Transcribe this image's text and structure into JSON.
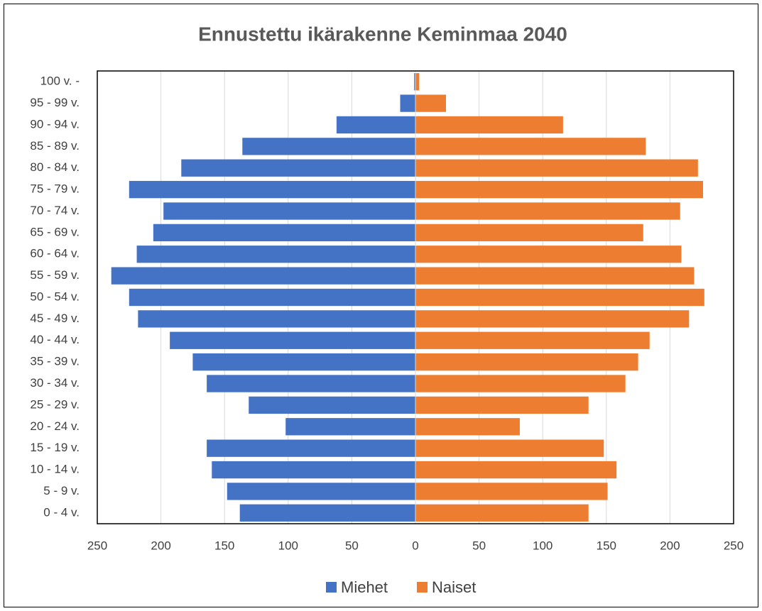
{
  "chart_data": {
    "type": "bar",
    "orientation": "horizontal",
    "title": "Ennustettu ikärakenne Keminmaa 2040",
    "categories": [
      "100 v. -",
      "95 - 99 v.",
      "90 - 94 v.",
      "85 - 89 v.",
      "80 - 84 v.",
      "75 - 79 v.",
      "70 - 74 v.",
      "65 - 69 v.",
      "60 - 64 v.",
      "55 - 59 v.",
      "50 - 54 v.",
      "45 - 49 v.",
      "40 - 44 v.",
      "35 - 39 v.",
      "30 - 34 v.",
      "25 - 29 v.",
      "20 - 24 v.",
      "15 - 19 v.",
      "10 - 14 v.",
      "5 - 9 v.",
      "0 - 4 v."
    ],
    "series": [
      {
        "name": "Miehet",
        "color": "#4472c4",
        "values": [
          -1,
          -12,
          -62,
          -136,
          -184,
          -225,
          -198,
          -206,
          -219,
          -239,
          -225,
          -218,
          -193,
          -175,
          -164,
          -131,
          -102,
          -164,
          -160,
          -148,
          -138
        ]
      },
      {
        "name": "Naiset",
        "color": "#ed7d31",
        "values": [
          3,
          24,
          116,
          181,
          222,
          226,
          208,
          179,
          209,
          219,
          227,
          215,
          184,
          175,
          165,
          136,
          82,
          148,
          158,
          151,
          136
        ]
      }
    ],
    "xlim": [
      -250,
      250
    ],
    "xticks": [
      {
        "value": -250,
        "label": "250"
      },
      {
        "value": -200,
        "label": "200"
      },
      {
        "value": -150,
        "label": "150"
      },
      {
        "value": -100,
        "label": "100"
      },
      {
        "value": -50,
        "label": "50"
      },
      0,
      50,
      100,
      150,
      200,
      250
    ],
    "grid": true,
    "legend": "bottom"
  }
}
